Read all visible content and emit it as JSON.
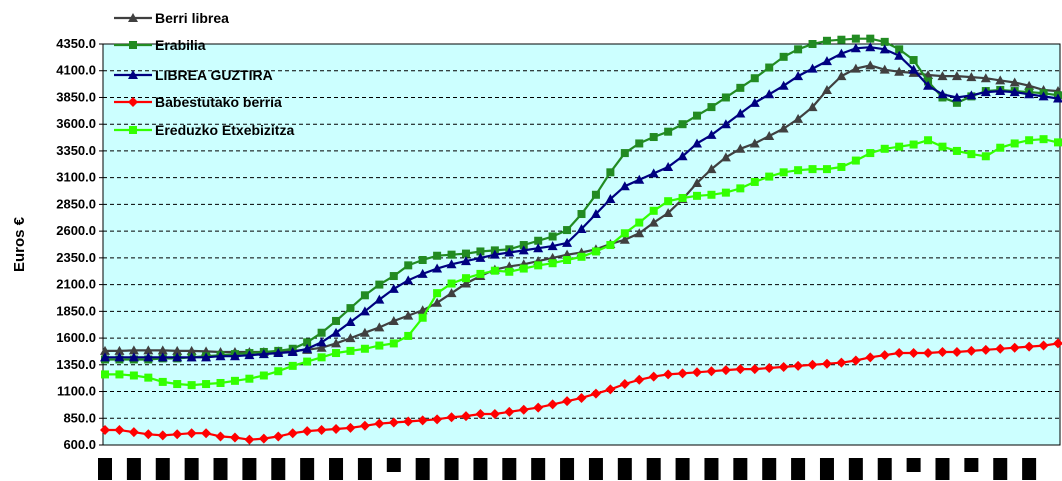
{
  "chart_data": {
    "type": "line",
    "title": "",
    "xlabel": "",
    "ylabel": "Euros €",
    "ylim": [
      600,
      4350
    ],
    "yticks": [
      "600.0",
      "850.0",
      "1100.0",
      "1350.0",
      "1600.0",
      "1850.0",
      "2100.0",
      "2350.0",
      "2600.0",
      "2850.0",
      "3100.0",
      "3350.0",
      "3600.0",
      "3850.0",
      "4100.0",
      "4350.0"
    ],
    "grid": true,
    "legend_position": "top-left",
    "plot_background": "#ccffff",
    "x_count": 67,
    "series": [
      {
        "name": "Berri librea",
        "color": "#404040",
        "marker": "triangle",
        "values": [
          1480,
          1480,
          1485,
          1485,
          1485,
          1480,
          1480,
          1475,
          1470,
          1470,
          1470,
          1470,
          1475,
          1480,
          1490,
          1510,
          1550,
          1600,
          1650,
          1700,
          1760,
          1810,
          1860,
          1930,
          2020,
          2110,
          2180,
          2240,
          2270,
          2290,
          2320,
          2350,
          2380,
          2400,
          2430,
          2480,
          2520,
          2580,
          2680,
          2770,
          2900,
          3050,
          3180,
          3290,
          3370,
          3420,
          3490,
          3560,
          3650,
          3760,
          3920,
          4050,
          4120,
          4150,
          4110,
          4090,
          4080,
          4060,
          4050,
          4050,
          4040,
          4030,
          4010,
          3990,
          3960,
          3920,
          3910
        ]
      },
      {
        "name": "Erabilia",
        "color": "#228b22",
        "marker": "square",
        "values": [
          1400,
          1400,
          1400,
          1400,
          1410,
          1410,
          1420,
          1430,
          1440,
          1450,
          1460,
          1470,
          1480,
          1500,
          1560,
          1650,
          1760,
          1880,
          2000,
          2100,
          2180,
          2280,
          2330,
          2370,
          2380,
          2390,
          2410,
          2420,
          2430,
          2470,
          2510,
          2550,
          2610,
          2760,
          2940,
          3150,
          3330,
          3420,
          3480,
          3530,
          3600,
          3680,
          3760,
          3850,
          3940,
          4030,
          4130,
          4230,
          4300,
          4350,
          4380,
          4390,
          4400,
          4400,
          4370,
          4300,
          4200,
          4000,
          3850,
          3800,
          3860,
          3910,
          3920,
          3910,
          3900,
          3890,
          3870
        ]
      },
      {
        "name": "LIBREA GUZTIRA",
        "color": "#000080",
        "marker": "triangle",
        "values": [
          1420,
          1420,
          1420,
          1420,
          1420,
          1420,
          1420,
          1420,
          1430,
          1430,
          1440,
          1450,
          1460,
          1470,
          1500,
          1560,
          1650,
          1750,
          1850,
          1960,
          2060,
          2140,
          2200,
          2250,
          2290,
          2320,
          2350,
          2380,
          2400,
          2420,
          2440,
          2460,
          2490,
          2620,
          2760,
          2900,
          3020,
          3080,
          3140,
          3200,
          3300,
          3420,
          3500,
          3600,
          3700,
          3800,
          3880,
          3960,
          4050,
          4120,
          4190,
          4260,
          4310,
          4320,
          4300,
          4240,
          4110,
          3960,
          3880,
          3850,
          3870,
          3900,
          3910,
          3900,
          3880,
          3860,
          3840
        ]
      },
      {
        "name": "Babestutako berria",
        "color": "#ff0000",
        "marker": "diamond",
        "values": [
          740,
          740,
          720,
          700,
          690,
          700,
          710,
          710,
          680,
          670,
          650,
          660,
          680,
          710,
          730,
          740,
          750,
          760,
          780,
          800,
          810,
          820,
          830,
          840,
          860,
          870,
          890,
          890,
          910,
          930,
          950,
          980,
          1010,
          1040,
          1080,
          1120,
          1170,
          1210,
          1240,
          1260,
          1270,
          1280,
          1290,
          1300,
          1310,
          1310,
          1320,
          1330,
          1340,
          1350,
          1360,
          1370,
          1390,
          1420,
          1440,
          1460,
          1460,
          1460,
          1470,
          1470,
          1480,
          1490,
          1500,
          1510,
          1520,
          1530,
          1550
        ]
      },
      {
        "name": "Ereduzko Etxebizitza",
        "color": "#33ff00",
        "marker": "square",
        "values": [
          1260,
          1260,
          1250,
          1230,
          1190,
          1170,
          1160,
          1170,
          1180,
          1200,
          1220,
          1250,
          1290,
          1340,
          1380,
          1420,
          1460,
          1480,
          1500,
          1530,
          1550,
          1620,
          1790,
          2020,
          2110,
          2160,
          2200,
          2230,
          2220,
          2250,
          2280,
          2300,
          2330,
          2360,
          2410,
          2470,
          2580,
          2680,
          2790,
          2880,
          2910,
          2930,
          2940,
          2960,
          3000,
          3060,
          3110,
          3150,
          3170,
          3180,
          3180,
          3200,
          3260,
          3330,
          3370,
          3390,
          3410,
          3450,
          3390,
          3350,
          3320,
          3300,
          3380,
          3420,
          3450,
          3460,
          3430
        ]
      }
    ]
  }
}
